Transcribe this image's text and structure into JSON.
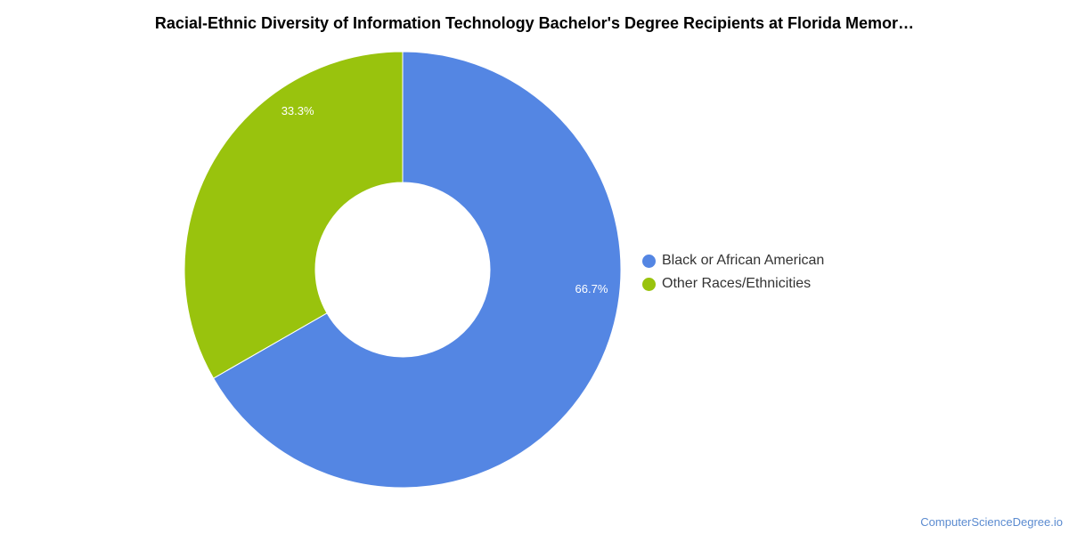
{
  "chart_data": {
    "type": "pie",
    "title": "Racial-Ethnic Diversity of Information Technology Bachelor's Degree Recipients at Florida Memor…",
    "categories": [
      "Black or African American",
      "Other Races/Ethnicities"
    ],
    "values": [
      66.7,
      33.3
    ],
    "data_labels": [
      "66.7%",
      "33.3%"
    ],
    "colors": [
      "#5486e3",
      "#99c30d"
    ],
    "donut": true,
    "legend_position": "right"
  },
  "watermark": "ComputerScienceDegree.io"
}
